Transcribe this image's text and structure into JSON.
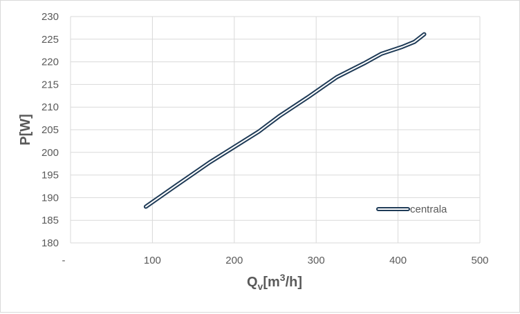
{
  "chart_data": {
    "type": "line",
    "title": "",
    "xlabel": {
      "main": "Q",
      "sub": "v",
      "unit_open": "[m",
      "sup": "3",
      "unit_close": "/h]"
    },
    "ylabel": "P[W]",
    "xlim": [
      0,
      500
    ],
    "ylim": [
      180,
      230
    ],
    "x_ticks": [
      {
        "value": 0,
        "label": "-"
      },
      {
        "value": 100,
        "label": "100"
      },
      {
        "value": 200,
        "label": "200"
      },
      {
        "value": 300,
        "label": "300"
      },
      {
        "value": 400,
        "label": "400"
      },
      {
        "value": 500,
        "label": "500"
      }
    ],
    "y_ticks": [
      180,
      185,
      190,
      195,
      200,
      205,
      210,
      215,
      220,
      225,
      230
    ],
    "grid": {
      "x": true,
      "y": true
    },
    "legend": {
      "position": "bottom-right-inside"
    },
    "series": [
      {
        "name": "centrala",
        "color": "#1f3b57",
        "fill": "#ffffff",
        "x": [
          92,
          130,
          170,
          200,
          230,
          255,
          290,
          325,
          360,
          380,
          405,
          420,
          432
        ],
        "y": [
          188.0,
          192.8,
          197.8,
          201.2,
          204.6,
          208.0,
          212.2,
          216.6,
          219.8,
          221.8,
          223.3,
          224.4,
          226.1
        ]
      }
    ]
  }
}
